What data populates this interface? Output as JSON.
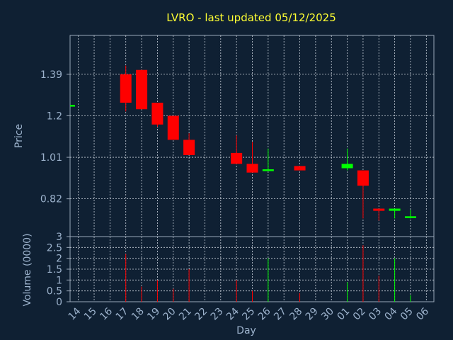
{
  "chart_data": {
    "type": "candlestick",
    "title": "LVRO - last updated 05/12/2025",
    "xlabel": "Day",
    "ylabel_price": "Price",
    "ylabel_volume": "Volume (0000)",
    "price_ticks": [
      "1.39",
      "1.2",
      "1.01",
      "0.82"
    ],
    "price_tick_values": [
      1.39,
      1.2,
      1.01,
      0.82
    ],
    "volume_ticks": [
      "3",
      "2.5",
      "2",
      "1.5",
      "1",
      "0.5",
      "0"
    ],
    "volume_tick_values": [
      3,
      2.5,
      2,
      1.5,
      1,
      0.5,
      0
    ],
    "price_ylim": [
      0.647,
      1.568
    ],
    "volume_ylim": [
      0,
      3
    ],
    "x_ticks": [
      "14",
      "15",
      "16",
      "17",
      "18",
      "19",
      "20",
      "21",
      "22",
      "23",
      "24",
      "25",
      "26",
      "27",
      "28",
      "29",
      "30",
      "01",
      "02",
      "03",
      "04",
      "05",
      "06"
    ],
    "grid": true,
    "up_color": "#00ff00",
    "down_color": "#ff0000",
    "candles": [
      {
        "day": "14",
        "open": 1.25,
        "high": 1.25,
        "low": 1.25,
        "close": 1.25,
        "volume": 0
      },
      {
        "day": "17",
        "open": 1.39,
        "high": 1.43,
        "low": 1.22,
        "close": 1.26,
        "volume": 2.2
      },
      {
        "day": "18",
        "open": 1.41,
        "high": 1.41,
        "low": 1.23,
        "close": 1.23,
        "volume": 0.7
      },
      {
        "day": "19",
        "open": 1.26,
        "high": 1.26,
        "low": 1.15,
        "close": 1.16,
        "volume": 1.0
      },
      {
        "day": "20",
        "open": 1.2,
        "high": 1.2,
        "low": 1.09,
        "close": 1.09,
        "volume": 0.6
      },
      {
        "day": "21",
        "open": 1.09,
        "high": 1.12,
        "low": 1.02,
        "close": 1.02,
        "volume": 1.5
      },
      {
        "day": "24",
        "open": 1.03,
        "high": 1.11,
        "low": 0.98,
        "close": 0.98,
        "volume": 1.0
      },
      {
        "day": "25",
        "open": 0.98,
        "high": 1.08,
        "low": 0.94,
        "close": 0.94,
        "volume": 0.5
      },
      {
        "day": "26",
        "open": 0.955,
        "high": 1.05,
        "low": 0.95,
        "close": 0.955,
        "volume": 2.0
      },
      {
        "day": "28",
        "open": 0.97,
        "high": 0.97,
        "low": 0.95,
        "close": 0.95,
        "volume": 0.4
      },
      {
        "day": "01",
        "open": 0.96,
        "high": 1.05,
        "low": 0.95,
        "close": 0.98,
        "volume": 0.9
      },
      {
        "day": "02",
        "open": 0.95,
        "high": 0.95,
        "low": 0.73,
        "close": 0.88,
        "volume": 2.6
      },
      {
        "day": "03",
        "open": 0.775,
        "high": 0.775,
        "low": 0.72,
        "close": 0.765,
        "volume": 1.2
      },
      {
        "day": "04",
        "open": 0.765,
        "high": 0.775,
        "low": 0.73,
        "close": 0.775,
        "volume": 2.0
      },
      {
        "day": "05",
        "open": 0.735,
        "high": 0.77,
        "low": 0.73,
        "close": 0.74,
        "volume": 0.3
      }
    ]
  }
}
